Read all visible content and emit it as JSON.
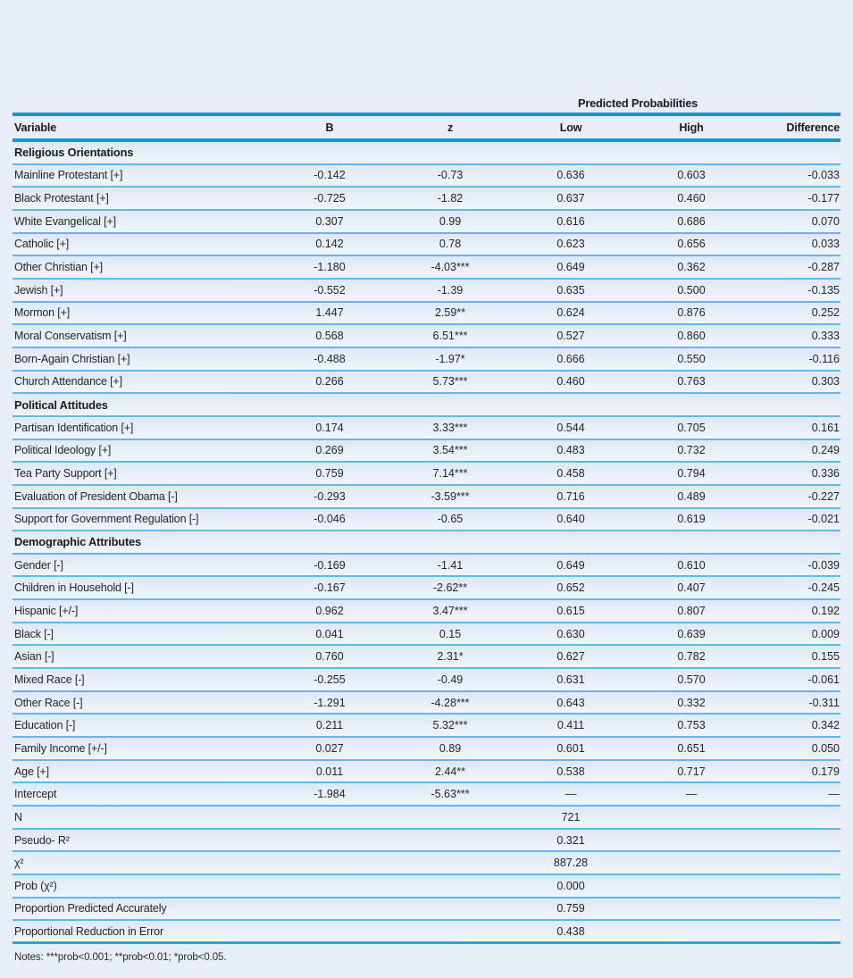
{
  "colors": {
    "page_background": "#e8eef7",
    "rule_thick": "#1496d4",
    "rule_thin": "#5fb9e5",
    "rule_bottom": "#2ea6dc",
    "text": "#262626"
  },
  "table": {
    "span_header": "Predicted Probabilities",
    "columns": [
      "Variable",
      "B",
      "z",
      "Low",
      "High",
      "Difference"
    ],
    "sections": [
      {
        "title": "Religious Orientations",
        "rows": [
          [
            "Mainline Protestant [+]",
            "-0.142",
            "-0.73",
            "0.636",
            "0.603",
            "-0.033"
          ],
          [
            "Black Protestant [+]",
            "-0.725",
            "-1.82",
            "0.637",
            "0.460",
            "-0.177"
          ],
          [
            "White Evangelical [+]",
            "0.307",
            "0.99",
            "0.616",
            "0.686",
            "0.070"
          ],
          [
            "Catholic [+]",
            "0.142",
            "0.78",
            "0.623",
            "0.656",
            "0.033"
          ],
          [
            "Other Christian [+]",
            "-1.180",
            "-4.03***",
            "0.649",
            "0.362",
            "-0.287"
          ],
          [
            "Jewish [+]",
            "-0.552",
            "-1.39",
            "0.635",
            "0.500",
            "-0.135"
          ],
          [
            "Mormon [+]",
            "1.447",
            "2.59**",
            "0.624",
            "0.876",
            "0.252"
          ],
          [
            "Moral Conservatism [+]",
            "0.568",
            "6.51***",
            "0.527",
            "0.860",
            "0.333"
          ],
          [
            "Born-Again Christian [+]",
            "-0.488",
            "-1.97*",
            "0.666",
            "0.550",
            "-0.116"
          ],
          [
            "Church Attendance [+]",
            "0.266",
            "5.73***",
            "0.460",
            "0.763",
            "0.303"
          ]
        ]
      },
      {
        "title": "Political Attitudes",
        "rows": [
          [
            "Partisan Identification [+]",
            "0.174",
            "3.33***",
            "0.544",
            "0.705",
            "0.161"
          ],
          [
            "Political Ideology [+]",
            "0.269",
            "3.54***",
            "0.483",
            "0.732",
            "0.249"
          ],
          [
            "Tea Party Support [+]",
            "0.759",
            "7.14***",
            "0.458",
            "0.794",
            "0.336"
          ],
          [
            "Evaluation of President Obama [-]",
            "-0.293",
            "-3.59***",
            "0.716",
            "0.489",
            "-0.227"
          ],
          [
            "Support for Government Regulation [-]",
            "-0.046",
            "-0.65",
            "0.640",
            "0.619",
            "-0.021"
          ]
        ]
      },
      {
        "title": "Demographic Attributes",
        "rows": [
          [
            "Gender [-]",
            "-0.169",
            "-1.41",
            "0.649",
            "0.610",
            "-0.039"
          ],
          [
            "Children in Household [-]",
            "-0.167",
            "-2.62**",
            "0.652",
            "0.407",
            "-0.245"
          ],
          [
            "Hispanic [+/-]",
            "0.962",
            "3.47***",
            "0.615",
            "0.807",
            "0.192"
          ],
          [
            "Black [-]",
            "0.041",
            "0.15",
            "0.630",
            "0.639",
            "0.009"
          ],
          [
            "Asian [-]",
            "0.760",
            "2.31*",
            "0.627",
            "0.782",
            "0.155"
          ],
          [
            "Mixed Race [-]",
            "-0.255",
            "-0.49",
            "0.631",
            "0.570",
            "-0.061"
          ],
          [
            "Other Race [-]",
            "-1.291",
            "-4.28***",
            "0.643",
            "0.332",
            "-0.311"
          ],
          [
            "Education [-]",
            "0.211",
            "5.32***",
            "0.411",
            "0.753",
            "0.342"
          ],
          [
            "Family Income [+/-]",
            "0.027",
            "0.89",
            "0.601",
            "0.651",
            "0.050"
          ],
          [
            "Age [+]",
            "0.011",
            "2.44**",
            "0.538",
            "0.717",
            "0.179"
          ],
          [
            "Intercept",
            "-1.984",
            "-5.63***",
            "—",
            "—",
            "—"
          ]
        ]
      }
    ],
    "stats": [
      {
        "label": "N",
        "value": "721"
      },
      {
        "label": "Pseudo- R²",
        "value": "0.321"
      },
      {
        "label": "χ²",
        "value": "887.28"
      },
      {
        "label": "Prob (χ²)",
        "value": "0.000"
      },
      {
        "label": "Proportion Predicted Accurately",
        "value": "0.759"
      },
      {
        "label": "Proportional Reduction in Error",
        "value": "0.438"
      }
    ],
    "notes": "Notes: ***prob<0.001; **prob<0.01; *prob<0.05."
  }
}
